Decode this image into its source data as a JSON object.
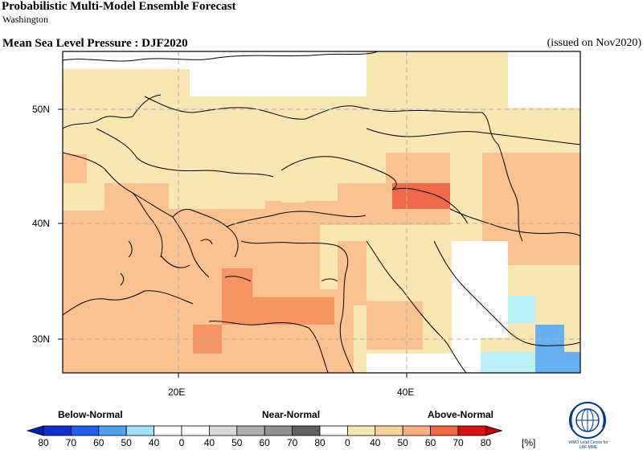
{
  "header": {
    "title": "Probabilistic Multi-Model Ensemble Forecast",
    "subtitle": "Washington",
    "variable": "Mean Sea Level Pressure : DJF2020",
    "issued": "(issued on Nov2020)"
  },
  "map": {
    "lat_labels": [
      "50N",
      "40N",
      "30N"
    ],
    "lon_labels": [
      "20E",
      "40E"
    ],
    "lon_range_deg": [
      10,
      56
    ],
    "lat_range_deg": [
      27,
      55
    ],
    "palette": {
      "ocean_above_low": "#f8e7b2",
      "above_40_50": "#fbd39a",
      "above_50_60": "#f9c290",
      "above_60_70": "#f79562",
      "above_70_80": "#f06a4a",
      "land_white": "#ffffff",
      "below_40_50": "#b8f0f5",
      "below_50_60": "#66b2f0",
      "coast": "#000000",
      "grid": "#b0b0b0"
    }
  },
  "legend": {
    "categories": [
      "Below-Normal",
      "Near-Normal",
      "Above-Normal"
    ],
    "ticks": [
      "80",
      "70",
      "60",
      "50",
      "40",
      "0",
      "40",
      "50",
      "60",
      "70",
      "80",
      "0",
      "40",
      "50",
      "60",
      "70",
      "80"
    ],
    "unit": "[%]",
    "colors": [
      "#1030d0",
      "#2060f0",
      "#50a0f0",
      "#a0e0f8",
      "#ffffff",
      "#ffffff",
      "#d8d8d8",
      "#b0b0b0",
      "#909090",
      "#606060",
      "#ffffff",
      "#f8e8b0",
      "#fbd39a",
      "#f9b080",
      "#f06a4a",
      "#d81010"
    ]
  },
  "logo": {
    "text_line1": "WMO Lead Centre for",
    "text_line2": "LRF MME"
  }
}
